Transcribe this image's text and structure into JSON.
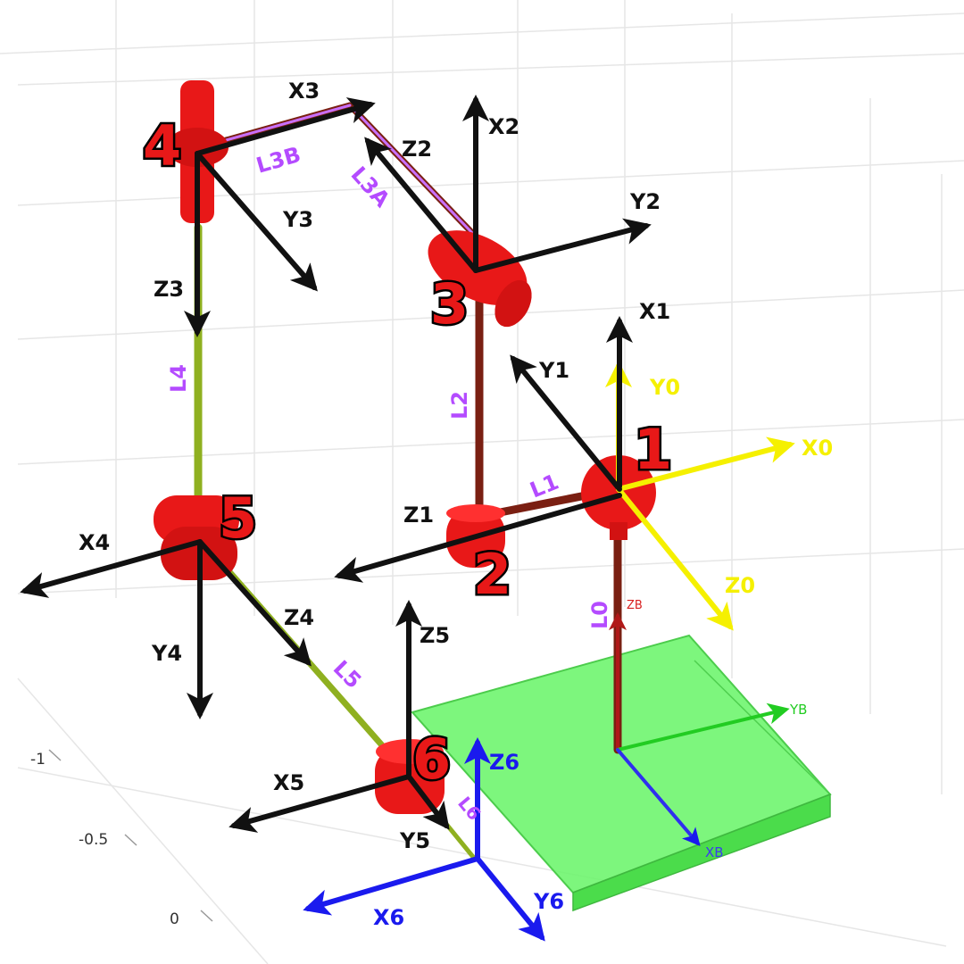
{
  "colors": {
    "joint_red": "#e81818",
    "link_dark_red": "#7a1f12",
    "link_green": "#8fb020",
    "base_green": "#55ee55",
    "frame_black": "#111111",
    "frame_yellow": "#f5f000",
    "frame_blue": "#1a1aee",
    "link_label_purple": "#b44bff"
  },
  "joints": [
    "1",
    "2",
    "3",
    "4",
    "5",
    "6"
  ],
  "links": {
    "l0": "L0",
    "l1": "L1",
    "l2": "L2",
    "l3a": "L3A",
    "l3b": "L3B",
    "l4": "L4",
    "l5": "L5",
    "l6": "L6"
  },
  "frames": {
    "f0": {
      "x": "X0",
      "y": "Y0",
      "z": "Z0"
    },
    "f1": {
      "x": "X1",
      "y": "Y1",
      "z": "Z1"
    },
    "f2": {
      "x": "X2",
      "y": "Y2",
      "z": "Z2"
    },
    "f3": {
      "x": "X3",
      "y": "Y3",
      "z": "Z3"
    },
    "f4": {
      "x": "X4",
      "y": "Y4",
      "z": "Z4"
    },
    "f5": {
      "x": "X5",
      "y": "Y5",
      "z": "Z5"
    },
    "f6": {
      "x": "X6",
      "y": "Y6",
      "z": "Z6"
    },
    "base": {
      "x": "XB",
      "y": "YB",
      "z": "ZB"
    }
  },
  "axis_ticks": [
    "-1",
    "-0.5",
    "0"
  ]
}
